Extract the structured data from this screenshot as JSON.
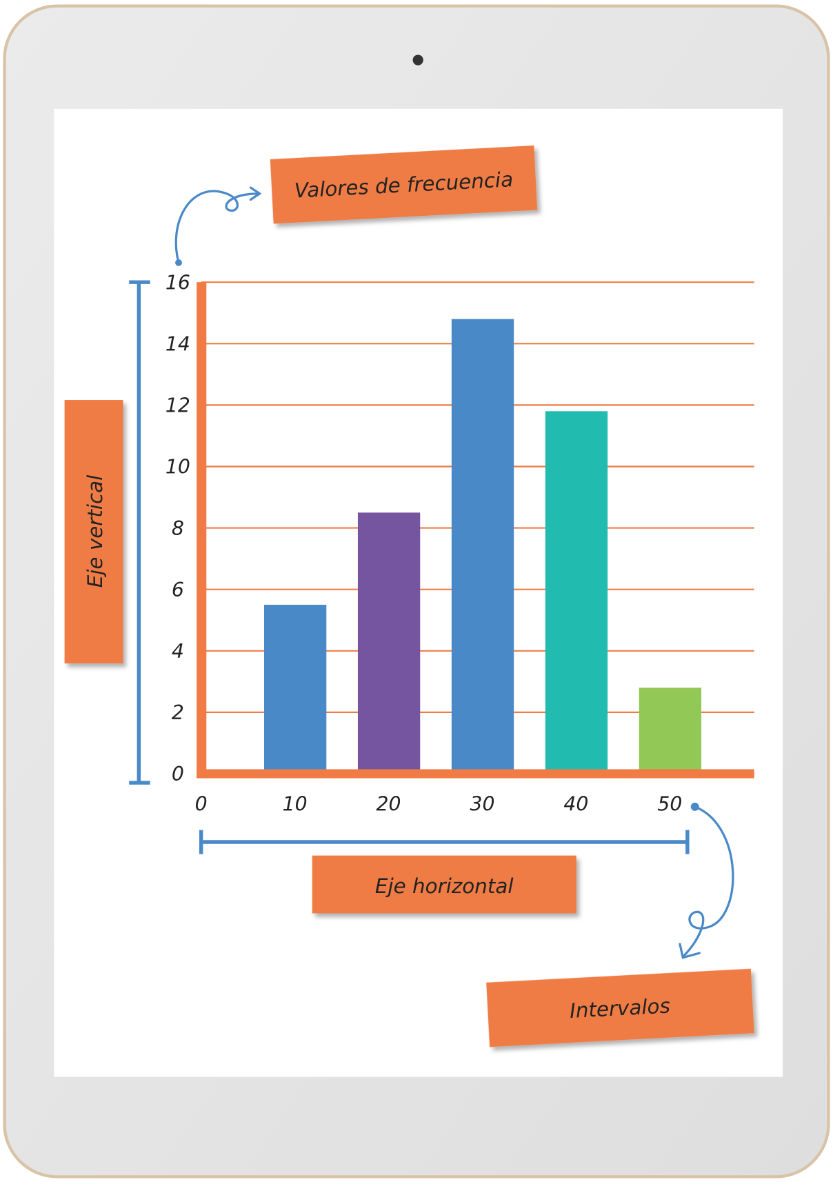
{
  "chart_data": {
    "type": "bar",
    "annotations": [
      "Valores de frecuencia",
      "Eje vertical",
      "Eje horizontal",
      "Intervalos"
    ],
    "x": [
      10,
      20,
      30,
      40,
      50
    ],
    "values": [
      5.5,
      8.5,
      14.8,
      11.8,
      2.8
    ],
    "colors": [
      "#4a89c8",
      "#7655a0",
      "#4a89c8",
      "#22bbb0",
      "#92c855"
    ],
    "xlim": [
      0,
      59
    ],
    "xticks": [
      0,
      10,
      20,
      30,
      40,
      50
    ],
    "ylim": [
      0,
      16
    ],
    "yticks": [
      0,
      2,
      4,
      6,
      8,
      10,
      12,
      14,
      16
    ],
    "grid": true,
    "axis_color": "#f07b45",
    "grid_color": "#f07b45"
  }
}
